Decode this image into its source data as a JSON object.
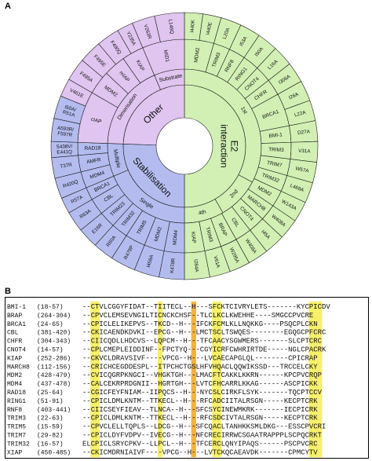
{
  "panels": {
    "a": "A",
    "b": "B"
  },
  "colors": {
    "e2": "#d2f0b4",
    "stab": "#b4bcef",
    "other": "#dfc5ef",
    "stroke": "#1e1e1e",
    "yellow": "#f6f06a",
    "orange": "#f2b43a"
  },
  "sunburst": {
    "groups": [
      {
        "key": "e2",
        "label": "E2 interaction",
        "start": 0,
        "end": 180
      },
      {
        "key": "stab",
        "label": "Stabilisation",
        "start": 180,
        "end": 272
      },
      {
        "key": "other",
        "label": "Other",
        "start": 272,
        "end": 360
      }
    ],
    "subgroups": [
      {
        "key": "e2",
        "label": "1st",
        "start": 0,
        "end": 118
      },
      {
        "key": "e2",
        "label": "2nd",
        "start": 118,
        "end": 150
      },
      {
        "key": "e2",
        "label": "4th",
        "start": 150,
        "end": 180
      },
      {
        "key": "stab",
        "label": "Single",
        "start": 180,
        "end": 247
      },
      {
        "key": "stab",
        "label": "Multiple",
        "start": 247,
        "end": 272
      },
      {
        "key": "other",
        "label": "Dimerisation",
        "start": 272,
        "end": 337
      },
      {
        "key": "other",
        "label": "Substrate",
        "start": 337,
        "end": 360
      }
    ],
    "proteins": [
      {
        "key": "e2",
        "label": "MDM2",
        "start": 0,
        "end": 16
      },
      {
        "key": "e2",
        "label": "TRIM3",
        "start": 16,
        "end": 25
      },
      {
        "key": "e2",
        "label": "RNF8",
        "start": 25,
        "end": 34
      },
      {
        "key": "e2",
        "label": "RING1",
        "start": 34,
        "end": 43
      },
      {
        "key": "e2",
        "label": "CNOT4",
        "start": 43,
        "end": 52
      },
      {
        "key": "e2",
        "label": "CHFR",
        "start": 52,
        "end": 61
      },
      {
        "key": "e2",
        "label": "BRCA1",
        "start": 61,
        "end": 79
      },
      {
        "key": "e2",
        "label": "BMI-1",
        "start": 79,
        "end": 88
      },
      {
        "key": "e2",
        "label": "TRIM3",
        "start": 88,
        "end": 97
      },
      {
        "key": "e2",
        "label": "TRIM7",
        "start": 97,
        "end": 106
      },
      {
        "key": "e2",
        "label": "TRIM32",
        "start": 106,
        "end": 115
      },
      {
        "key": "e2",
        "label": "MDM2",
        "start": 115,
        "end": 124
      },
      {
        "key": "e2",
        "label": "MARCH8",
        "start": 124,
        "end": 133
      },
      {
        "key": "e2",
        "label": "CNOT4",
        "start": 133,
        "end": 142
      },
      {
        "key": "e2",
        "label": "CBL",
        "start": 142,
        "end": 151
      },
      {
        "key": "e2",
        "label": "BRAP",
        "start": 151,
        "end": 160
      },
      {
        "key": "e2",
        "label": "TRIM3",
        "start": 160,
        "end": 169
      },
      {
        "key": "e2",
        "label": "KIAP",
        "start": 169,
        "end": 180
      },
      {
        "key": "stab",
        "label": "MDM4",
        "start": 180,
        "end": 191
      },
      {
        "key": "stab",
        "label": "MDM2",
        "start": 191,
        "end": 202
      },
      {
        "key": "stab",
        "label": "TRIM5",
        "start": 202,
        "end": 213
      },
      {
        "key": "stab",
        "label": "TRIM32",
        "start": 213,
        "end": 222
      },
      {
        "key": "stab",
        "label": "TRIM23",
        "start": 222,
        "end": 231
      },
      {
        "key": "stab",
        "label": "CBL",
        "start": 231,
        "end": 240
      },
      {
        "key": "stab",
        "label": "BRCA1",
        "start": 240,
        "end": 247
      },
      {
        "key": "stab",
        "label": "MDM4",
        "start": 247,
        "end": 256
      },
      {
        "key": "stab",
        "label": "AMFR",
        "start": 256,
        "end": 265
      },
      {
        "key": "stab",
        "label": "RAD18",
        "start": 265,
        "end": 272
      },
      {
        "key": "other",
        "label": "cIAP",
        "start": 272,
        "end": 300
      },
      {
        "key": "other",
        "label": "MDM2",
        "start": 300,
        "end": 313
      },
      {
        "key": "other",
        "label": "mIAP",
        "start": 313,
        "end": 325
      },
      {
        "key": "other",
        "label": "KIAP",
        "start": 325,
        "end": 337
      },
      {
        "key": "other",
        "label": "MID1",
        "start": 337,
        "end": 360
      }
    ],
    "mutations": [
      {
        "key": "e2",
        "label": "I440K",
        "start": 0,
        "end": 8
      },
      {
        "key": "e2",
        "label": "I440E",
        "start": 8,
        "end": 16
      },
      {
        "key": "e2",
        "label": "L20A",
        "start": 16,
        "end": 25
      },
      {
        "key": "e2",
        "label": "I53A",
        "start": 25,
        "end": 34
      },
      {
        "key": "e2",
        "label": "I50A",
        "start": 34,
        "end": 43
      },
      {
        "key": "e2",
        "label": "L16A",
        "start": 43,
        "end": 52
      },
      {
        "key": "e2",
        "label": "I306A",
        "start": 52,
        "end": 61
      },
      {
        "key": "e2",
        "label": "I26A",
        "start": 61,
        "end": 70
      },
      {
        "key": "e2",
        "label": "L22A",
        "start": 70,
        "end": 79
      },
      {
        "key": "e2",
        "label": "D27A",
        "start": 79,
        "end": 88
      },
      {
        "key": "e2",
        "label": "V31A",
        "start": 88,
        "end": 97
      },
      {
        "key": "e2",
        "label": "W57A",
        "start": 97,
        "end": 106
      },
      {
        "key": "e2",
        "label": "L468A",
        "start": 106,
        "end": 115
      },
      {
        "key": "e2",
        "label": "W143A",
        "start": 115,
        "end": 124
      },
      {
        "key": "e2",
        "label": "W408A",
        "start": 124,
        "end": 133
      },
      {
        "key": "e2",
        "label": "I45A",
        "start": 133,
        "end": 142
      },
      {
        "key": "e2",
        "label": "W408A",
        "start": 142,
        "end": 151
      },
      {
        "key": "e2",
        "label": "W295A",
        "start": 151,
        "end": 160
      },
      {
        "key": "e2",
        "label": "V61A",
        "start": 160,
        "end": 169
      },
      {
        "key": "e2",
        "label": "I284A",
        "start": 169,
        "end": 180
      },
      {
        "key": "stab",
        "label": "K478R",
        "start": 180,
        "end": 191
      },
      {
        "key": "stab",
        "label": "I459A",
        "start": 191,
        "end": 202
      },
      {
        "key": "stab",
        "label": "R479P",
        "start": 202,
        "end": 213
      },
      {
        "key": "stab",
        "label": "R60A",
        "start": 213,
        "end": 222
      },
      {
        "key": "stab",
        "label": "E16R",
        "start": 222,
        "end": 231
      },
      {
        "key": "stab",
        "label": "R63A",
        "start": 231,
        "end": 240
      },
      {
        "key": "stab",
        "label": "R57A",
        "start": 240,
        "end": 247
      },
      {
        "key": "stab",
        "label": "R420Q",
        "start": 247,
        "end": 256
      },
      {
        "key": "stab",
        "label": "T37R",
        "start": 256,
        "end": 265
      },
      {
        "key": "stab",
        "label": "S438V/ E441Q",
        "start": 265,
        "end": 272
      },
      {
        "key": "stab",
        "label": "A593R/ F597R",
        "start": 272,
        "end": 282
      },
      {
        "key": "stab",
        "label": "I50A/ R51A",
        "start": 282,
        "end": 292
      },
      {
        "key": "other",
        "label": "V461E",
        "start": 292,
        "end": 300
      },
      {
        "key": "other",
        "label": "F495A",
        "start": 300,
        "end": 310
      },
      {
        "key": "other",
        "label": "F495E",
        "start": 310,
        "end": 320
      },
      {
        "key": "other",
        "label": "F490Q",
        "start": 320,
        "end": 330
      },
      {
        "key": "other",
        "label": "Y235A",
        "start": 330,
        "end": 337
      },
      {
        "key": "other",
        "label": "V263R",
        "start": 337,
        "end": 347
      },
      {
        "key": "other",
        "label": "L146Q",
        "start": 347,
        "end": 360
      }
    ]
  },
  "alignment": {
    "rows": [
      {
        "name": "BMI-1",
        "range": "(18-57)",
        "seq": "--CTVLCGGYFIDAT--TIITECL--H---SFCKTCIVRYLETS-------KYCPICDV"
      },
      {
        "name": "BRAP",
        "range": "(264-304)",
        "seq": "--CPVCLEMSEVNGILTICNCKCHSF--TLCLKCLKWEHHE----SMGCCPVCRE"
      },
      {
        "name": "BRCA1",
        "range": "(24-65)",
        "seq": "--CPICLELIKEPVS--TKCD--H---IFCKFCMLKLLNQKKG----PSQCPLCKN"
      },
      {
        "name": "CBL",
        "range": "(381-420)",
        "seq": "--CKICAENDKDVKI--EPCG--H---LMCTSCLTSWQES--------EGQGCPFCRC"
      },
      {
        "name": "CHFR",
        "range": "(304-343)",
        "seq": "--CIICQDLLHDCVS--LQPCM--H---TFCAACYSGWMERS-------SLCPTCRC"
      },
      {
        "name": "CNOT4",
        "range": "(14-57)",
        "seq": "--CPLCMEPLEIDDINF--FPCTYQ---CGYICRFCWHRIRTDE-----NGLCPACRK"
      },
      {
        "name": "KIAP",
        "range": "(252-286)",
        "seq": "--CKVCLDRAVSIVF----VPCG--H---LVCAECAPGLQL--------CPICRAP"
      },
      {
        "name": "MARCH8",
        "range": "(112-156)",
        "seq": "--CRICHCEGDDESPL--ITPCHCTGSLHFVHQACLQQWIKSSD---TRCCELCKY"
      },
      {
        "name": "MDM2",
        "range": "(428-479)",
        "seq": "--CVICQGRPKNGCI--VHGKTGH---LMACFTCAKKLKKRN------KPCPVCRQP"
      },
      {
        "name": "MDM4",
        "range": "(437-478)",
        "seq": "--CALCEKRPRDGNII--HGRTGH---LVTCFHCARRLKKAG------ASCPICKK"
      },
      {
        "name": "RAD18",
        "range": "(25-64)",
        "seq": "--CGICFEYFNIAM--IIPQCS--H---NYCSLCIRKFLSYK-------TQCPTCCV"
      },
      {
        "name": "RING1",
        "range": "(51-91)",
        "seq": "--CPICLDMLKNTM--TTKECL--H---RFCADCIITALRSGN-----KECPTCRK"
      },
      {
        "name": "RNF8",
        "range": "(403-441)",
        "seq": "--CIICSEYFIEAV--TLNCA--H---SFCSYCINEWMKRK-------IECPICRK"
      },
      {
        "name": "TRIM3",
        "range": "(22-63)",
        "seq": "--CPICLDMLKNTM--TTKECL--H---RFCSDCIVTALRSGN-----KECPTCRK"
      },
      {
        "name": "TRIM5",
        "range": "(15-59)",
        "seq": "--CPVCLELLTQPLS--LDCG--H---SFCQACLTANHKKSMLDKG---ESSCPVCRI"
      },
      {
        "name": "TRIM7",
        "range": "(29-82)",
        "seq": "--CPICLDYFVDPV--IVECG--H---NFCRECIRRWCSGAATRAPPPLSCPQCRKT"
      },
      {
        "name": "TRIM32",
        "range": "(16-57)",
        "seq": "ELCPICLSRYCPKV--LLPCL--H---TFCERCLQNYIPAQS------PSCPVCRC"
      },
      {
        "name": "XIAP",
        "range": "(450-485)",
        "seq": "--CKICMDRNIAIVF----VPCG--H---LVTCKQCAEAVDK-------CPMCYTV"
      }
    ]
  }
}
